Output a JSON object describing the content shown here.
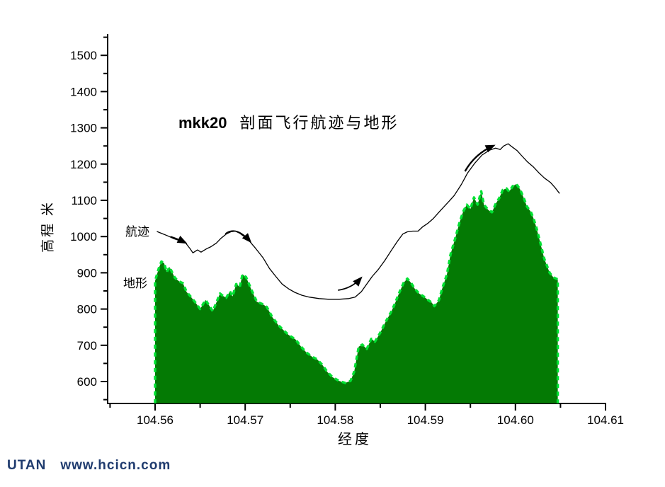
{
  "title": {
    "prefix": "mkk20",
    "main": "剖面飞行航迹与地形"
  },
  "y_axis_label": "高程 米",
  "x_axis_label": "经度",
  "annotations": {
    "flight_path": "航迹",
    "terrain": "地形"
  },
  "footer": {
    "brand": "UTAN",
    "url": "www.hcicn.com",
    "color": "#1f3b6e"
  },
  "colors": {
    "background": "#ffffff",
    "axis": "#000000",
    "flight_path_line": "#000000",
    "terrain_fill": "#047a04",
    "terrain_outline": "#00e132",
    "footer_text": "#1f3b6e"
  },
  "chart_data": {
    "type": "area",
    "title": "mkk20 剖面飞行航迹与地形",
    "xlabel": "经度",
    "ylabel": "高程 米",
    "xlim": [
      104.555,
      104.61
    ],
    "ylim": [
      540,
      1550
    ],
    "grid": false,
    "legend_position": "inline-annotations",
    "x_ticks_major": [
      "104.56",
      "104.57",
      "104.58",
      "104.59",
      "104.60",
      "104.61"
    ],
    "x_ticks_minor": [
      104.555,
      104.565,
      104.575,
      104.585,
      104.595,
      104.605
    ],
    "y_ticks_major": [
      600,
      700,
      800,
      900,
      1000,
      1100,
      1200,
      1300,
      1400,
      1500
    ],
    "y_ticks_minor": [
      550,
      650,
      750,
      850,
      950,
      1050,
      1150,
      1250,
      1350,
      1450,
      1550
    ],
    "series": [
      {
        "name": "航迹",
        "type": "line",
        "color": "#000000",
        "points": [
          [
            104.5602,
            1014
          ],
          [
            104.5608,
            1008
          ],
          [
            104.5614,
            1002
          ],
          [
            104.5621,
            994
          ],
          [
            104.5628,
            988
          ],
          [
            104.5634,
            982
          ],
          [
            104.5639,
            966
          ],
          [
            104.5642,
            955
          ],
          [
            104.5647,
            963
          ],
          [
            104.5651,
            957
          ],
          [
            104.5657,
            966
          ],
          [
            104.5662,
            972
          ],
          [
            104.5668,
            982
          ],
          [
            104.5673,
            995
          ],
          [
            104.5679,
            1007
          ],
          [
            104.5684,
            1013
          ],
          [
            104.5689,
            1015
          ],
          [
            104.5694,
            1009
          ],
          [
            104.57,
            998
          ],
          [
            104.5706,
            984
          ],
          [
            104.5712,
            966
          ],
          [
            104.572,
            941
          ],
          [
            104.5727,
            912
          ],
          [
            104.5734,
            890
          ],
          [
            104.5741,
            869
          ],
          [
            104.5748,
            856
          ],
          [
            104.5755,
            846
          ],
          [
            104.5763,
            838
          ],
          [
            104.5771,
            833
          ],
          [
            104.5782,
            829
          ],
          [
            104.5793,
            827
          ],
          [
            104.5804,
            827
          ],
          [
            104.5815,
            829
          ],
          [
            104.5822,
            833
          ],
          [
            104.5829,
            848
          ],
          [
            104.5835,
            869
          ],
          [
            104.5841,
            890
          ],
          [
            104.5848,
            910
          ],
          [
            104.5855,
            934
          ],
          [
            104.5862,
            961
          ],
          [
            104.5869,
            987
          ],
          [
            104.5875,
            1007
          ],
          [
            104.588,
            1013
          ],
          [
            104.5886,
            1015
          ],
          [
            104.5892,
            1015
          ],
          [
            104.5897,
            1027
          ],
          [
            104.5903,
            1037
          ],
          [
            104.5909,
            1050
          ],
          [
            104.5916,
            1070
          ],
          [
            104.5924,
            1091
          ],
          [
            104.5932,
            1113
          ],
          [
            104.594,
            1144
          ],
          [
            104.5947,
            1176
          ],
          [
            104.5955,
            1203
          ],
          [
            104.5963,
            1225
          ],
          [
            104.5971,
            1238
          ],
          [
            104.5978,
            1244
          ],
          [
            104.5983,
            1240
          ],
          [
            104.5987,
            1250
          ],
          [
            104.5992,
            1256
          ],
          [
            104.5996,
            1248
          ],
          [
            104.6002,
            1237
          ],
          [
            104.6007,
            1223
          ],
          [
            104.6013,
            1207
          ],
          [
            104.602,
            1192
          ],
          [
            104.6026,
            1176
          ],
          [
            104.6032,
            1162
          ],
          [
            104.6039,
            1149
          ],
          [
            104.6044,
            1135
          ],
          [
            104.6049,
            1119
          ]
        ]
      },
      {
        "name": "地形",
        "type": "area",
        "fill": "#047a04",
        "outline": "#00e132",
        "baseline": 540,
        "points": [
          [
            104.56,
            878
          ],
          [
            104.5604,
            912
          ],
          [
            104.5607,
            931
          ],
          [
            104.561,
            927
          ],
          [
            104.5613,
            902
          ],
          [
            104.5616,
            916
          ],
          [
            104.5622,
            886
          ],
          [
            104.5627,
            876
          ],
          [
            104.5631,
            871
          ],
          [
            104.5635,
            847
          ],
          [
            104.564,
            833
          ],
          [
            104.5646,
            814
          ],
          [
            104.565,
            800
          ],
          [
            104.5656,
            825
          ],
          [
            104.566,
            810
          ],
          [
            104.5664,
            794
          ],
          [
            104.5668,
            818
          ],
          [
            104.5672,
            843
          ],
          [
            104.5675,
            837
          ],
          [
            104.5679,
            831
          ],
          [
            104.5683,
            849
          ],
          [
            104.5686,
            835
          ],
          [
            104.569,
            869
          ],
          [
            104.5694,
            861
          ],
          [
            104.5697,
            896
          ],
          [
            104.5701,
            888
          ],
          [
            104.5707,
            853
          ],
          [
            104.5713,
            820
          ],
          [
            104.5719,
            814
          ],
          [
            104.5724,
            806
          ],
          [
            104.573,
            778
          ],
          [
            104.5737,
            755
          ],
          [
            104.5742,
            743
          ],
          [
            104.5748,
            729
          ],
          [
            104.5756,
            716
          ],
          [
            104.5762,
            696
          ],
          [
            104.5768,
            680
          ],
          [
            104.5774,
            669
          ],
          [
            104.578,
            661
          ],
          [
            104.5786,
            645
          ],
          [
            104.5791,
            627
          ],
          [
            104.5797,
            612
          ],
          [
            104.5804,
            602
          ],
          [
            104.5811,
            596
          ],
          [
            104.5817,
            602
          ],
          [
            104.5821,
            627
          ],
          [
            104.5826,
            696
          ],
          [
            104.583,
            702
          ],
          [
            104.5835,
            690
          ],
          [
            104.584,
            718
          ],
          [
            104.5844,
            710
          ],
          [
            104.585,
            735
          ],
          [
            104.5856,
            765
          ],
          [
            104.5862,
            792
          ],
          [
            104.5866,
            814
          ],
          [
            104.5871,
            845
          ],
          [
            104.5876,
            873
          ],
          [
            104.588,
            884
          ],
          [
            104.5884,
            873
          ],
          [
            104.5888,
            857
          ],
          [
            104.5893,
            843
          ],
          [
            104.5898,
            835
          ],
          [
            104.5903,
            825
          ],
          [
            104.5907,
            818
          ],
          [
            104.591,
            808
          ],
          [
            104.5915,
            824
          ],
          [
            104.5919,
            859
          ],
          [
            104.5924,
            896
          ],
          [
            104.5928,
            951
          ],
          [
            104.5933,
            994
          ],
          [
            104.5938,
            1039
          ],
          [
            104.5942,
            1069
          ],
          [
            104.5946,
            1088
          ],
          [
            104.595,
            1076
          ],
          [
            104.5954,
            1108
          ],
          [
            104.5958,
            1088
          ],
          [
            104.5962,
            1125
          ],
          [
            104.5965,
            1088
          ],
          [
            104.597,
            1073
          ],
          [
            104.5974,
            1067
          ],
          [
            104.5978,
            1090
          ],
          [
            104.5982,
            1106
          ],
          [
            104.5986,
            1129
          ],
          [
            104.599,
            1133
          ],
          [
            104.5993,
            1124
          ],
          [
            104.5997,
            1139
          ],
          [
            104.6001,
            1145
          ],
          [
            104.6005,
            1131
          ],
          [
            104.6009,
            1108
          ],
          [
            104.6013,
            1082
          ],
          [
            104.6017,
            1069
          ],
          [
            104.602,
            1051
          ],
          [
            104.6023,
            1027
          ],
          [
            104.6026,
            998
          ],
          [
            104.6029,
            969
          ],
          [
            104.6032,
            939
          ],
          [
            104.6035,
            920
          ],
          [
            104.6038,
            900
          ],
          [
            104.6042,
            888
          ],
          [
            104.6045,
            884
          ],
          [
            104.6047,
            882
          ]
        ]
      }
    ],
    "arrows": [
      {
        "pts": [
          [
            104.5617,
            1000
          ],
          [
            104.5624,
            995
          ],
          [
            104.5633,
            984
          ]
        ],
        "w": 1.8
      },
      {
        "pts": [
          [
            104.5678,
            1008
          ],
          [
            104.569,
            1030
          ],
          [
            104.5705,
            988
          ]
        ],
        "w": 1.6
      },
      {
        "pts": [
          [
            104.5803,
            852
          ],
          [
            104.5818,
            857
          ],
          [
            104.5828,
            884
          ]
        ],
        "w": 1.8
      },
      {
        "pts": [
          [
            104.5944,
            1180
          ],
          [
            104.5955,
            1228
          ],
          [
            104.5975,
            1250
          ]
        ],
        "w": 2.4
      }
    ]
  }
}
